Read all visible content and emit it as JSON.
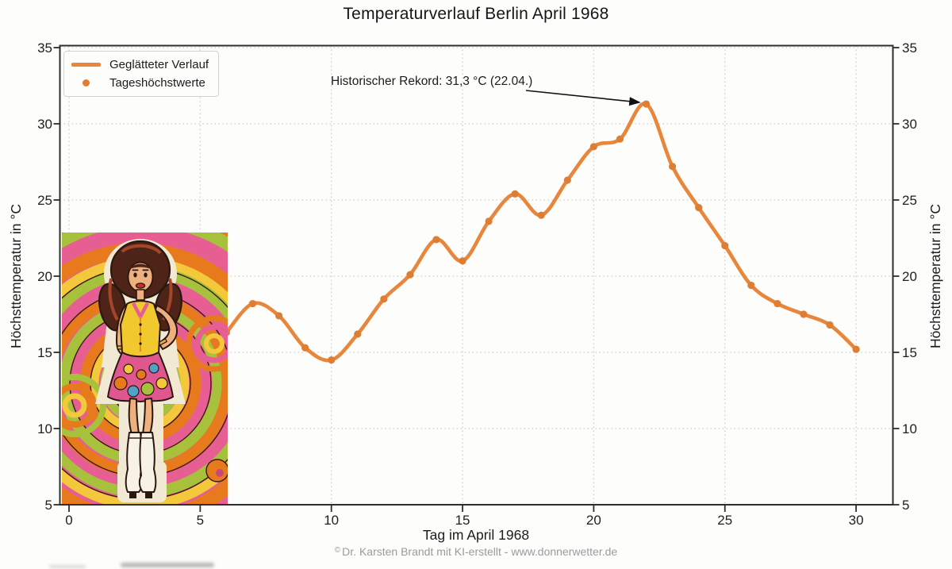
{
  "title": "Temperaturverlauf Berlin April 1968",
  "axes": {
    "xlabel": "Tag im April 1968",
    "ylabel_left": "Höchsttemperatur in °C",
    "ylabel_right": "Höchsttemperatur in °C"
  },
  "legend": {
    "items": [
      {
        "label": "Geglätteter Verlauf",
        "marker": "line"
      },
      {
        "label": "Tageshöchstwerte",
        "marker": "dot"
      }
    ]
  },
  "annotation": {
    "text": "Historischer Rekord: 31,3 °C (22.04.)",
    "target_day": 22,
    "target_value": 31.3
  },
  "footer": {
    "symbol": "©",
    "text": "Dr. Karsten Brandt mit KI-erstellt - www.donnerwetter.de"
  },
  "overlay_image": {
    "description": "Psychedelic 1960s pop-art illustration of a woman with bouffant auburn hair, yellow sleeveless top, swirl-patterned mini skirt and white go-go boots in front of swirling pink, orange and lime-green rings"
  },
  "colors": {
    "line": "#E8863C",
    "marker": "#DD7E33",
    "grid": "#CECECE",
    "spine": "#2E2E2E",
    "text": "#1C1C1C",
    "muted_text": "#9B9B9B",
    "background": "#FDFDFC"
  },
  "chart_data": {
    "type": "line",
    "title": "Temperaturverlauf Berlin April 1968",
    "xlabel": "Tag im April 1968",
    "ylabel": "Höchsttemperatur in °C",
    "xlim": [
      -0.4,
      31.3
    ],
    "ylim": [
      5,
      35.2
    ],
    "x_ticks": [
      0,
      5,
      10,
      15,
      20,
      25,
      30
    ],
    "y_ticks": [
      5,
      10,
      15,
      20,
      25,
      30,
      35
    ],
    "grid": "dotted",
    "legend_position": "upper left",
    "series": [
      {
        "name": "Geglätteter Verlauf",
        "style": "smooth line",
        "x": [
          6,
          7,
          8,
          9,
          10,
          11,
          12,
          13,
          14,
          15,
          16,
          17,
          18,
          19,
          20,
          21,
          22,
          23,
          24,
          25,
          26,
          27,
          28,
          29,
          30
        ],
        "y": [
          16.3,
          18.2,
          17.4,
          15.3,
          14.5,
          16.2,
          18.5,
          20.1,
          22.4,
          21.0,
          23.6,
          25.4,
          24.0,
          26.3,
          28.5,
          29.0,
          31.3,
          27.2,
          24.5,
          22.0,
          19.4,
          18.2,
          17.5,
          16.8,
          15.2
        ]
      },
      {
        "name": "Tageshöchstwerte",
        "style": "round markers",
        "x": [
          6,
          7,
          8,
          9,
          10,
          11,
          12,
          13,
          14,
          15,
          16,
          17,
          18,
          19,
          20,
          21,
          22,
          23,
          24,
          25,
          26,
          27,
          28,
          29,
          30
        ],
        "y": [
          16.3,
          18.2,
          17.4,
          15.3,
          14.5,
          16.2,
          18.5,
          20.1,
          22.4,
          21.0,
          23.6,
          25.4,
          24.0,
          26.3,
          28.5,
          29.0,
          31.3,
          27.2,
          24.5,
          22.0,
          19.4,
          18.2,
          17.5,
          16.8,
          15.2
        ]
      }
    ],
    "annotation": {
      "text": "Historischer Rekord: 31,3 °C (22.04.)",
      "xy": [
        22,
        31.3
      ]
    }
  }
}
